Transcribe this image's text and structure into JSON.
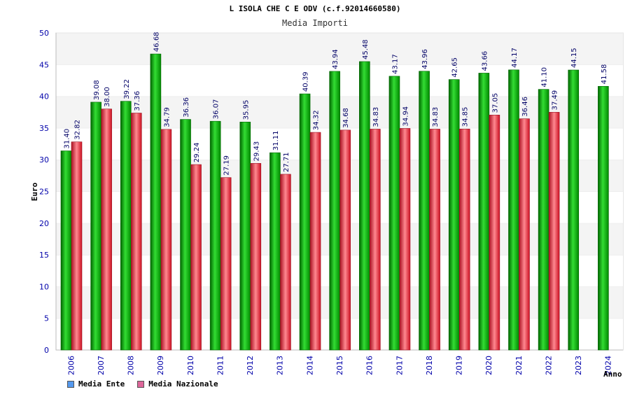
{
  "chart_data": {
    "type": "bar",
    "title": "L ISOLA CHE C E ODV (c.f.92014660580)",
    "subtitle": "Media Importi",
    "xlabel": "Anno",
    "ylabel": "Euro",
    "ylim": [
      0,
      50
    ],
    "yticks": [
      0,
      5,
      10,
      15,
      20,
      25,
      30,
      35,
      40,
      45,
      50
    ],
    "categories": [
      "2006",
      "2007",
      "2008",
      "2009",
      "2010",
      "2011",
      "2012",
      "2013",
      "2014",
      "2015",
      "2016",
      "2017",
      "2018",
      "2019",
      "2020",
      "2021",
      "2022",
      "2023",
      "2024"
    ],
    "series": [
      {
        "name": "Media Ente",
        "color": "#00aa00",
        "legend_color": "#5599ee",
        "values": [
          31.4,
          39.08,
          39.22,
          46.68,
          36.36,
          36.07,
          35.95,
          31.11,
          40.39,
          43.94,
          45.48,
          43.17,
          43.96,
          42.65,
          43.66,
          44.17,
          41.1,
          44.15,
          41.58
        ]
      },
      {
        "name": "Media Nazionale",
        "color": "#dd2233",
        "legend_color": "#dd6699",
        "values": [
          32.82,
          38.0,
          37.36,
          34.79,
          29.24,
          27.19,
          29.43,
          27.71,
          34.32,
          34.68,
          34.83,
          34.94,
          34.83,
          34.85,
          37.05,
          36.46,
          37.49,
          null,
          null
        ]
      }
    ],
    "grid": "horizontal-bands",
    "legend_position": "bottom-left"
  }
}
